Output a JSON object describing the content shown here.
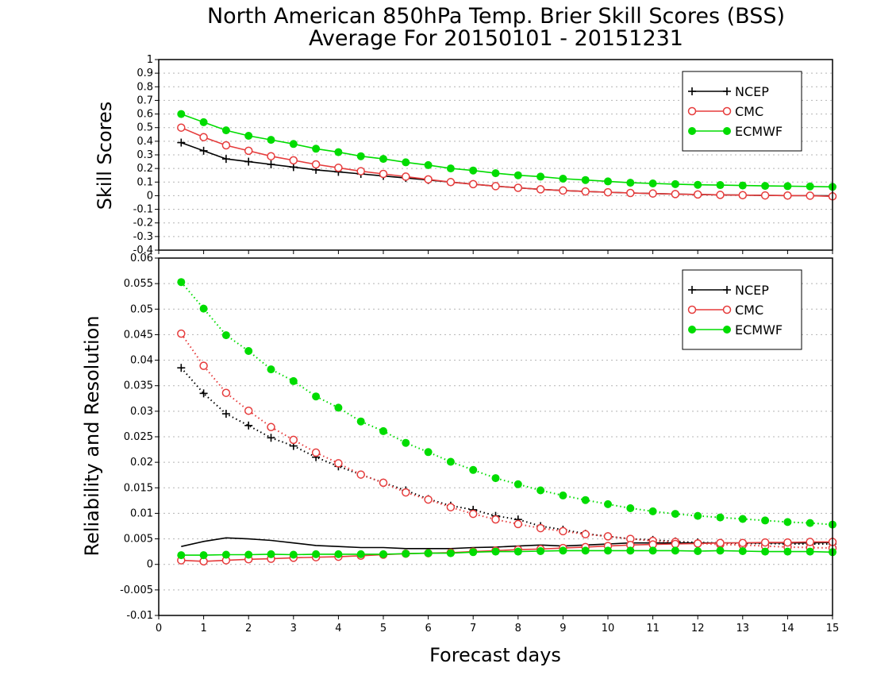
{
  "header": {
    "title_line1": "North American 850hPa Temp. Brier Skill Scores (BSS)",
    "title_line2": "Average For 20150101 - 20151231"
  },
  "colors": {
    "NCEP": "#000000",
    "CMC": "#e63c3c",
    "ECMWF": "#00dc00",
    "grid": "#b4b4b4"
  },
  "chart_data": [
    {
      "type": "line",
      "ylabel": "Skill Scores",
      "xlabel": "",
      "xlim": [
        0,
        15
      ],
      "ylim": [
        -0.4,
        1.0
      ],
      "y_ticks": [
        "-0.4",
        "-0.3",
        "-0.2",
        "-0.1",
        "0",
        "0.1",
        "0.2",
        "0.3",
        "0.4",
        "0.5",
        "0.6",
        "0.7",
        "0.8",
        "0.9",
        "1"
      ],
      "grid": true,
      "legend_position": "top-right",
      "legend": [
        "NCEP",
        "CMC",
        "ECMWF"
      ],
      "x": [
        0.5,
        1,
        1.5,
        2,
        2.5,
        3,
        3.5,
        4,
        4.5,
        5,
        5.5,
        6,
        6.5,
        7,
        7.5,
        8,
        8.5,
        9,
        9.5,
        10,
        10.5,
        11,
        11.5,
        12,
        12.5,
        13,
        13.5,
        14,
        14.5,
        15
      ],
      "series": [
        {
          "name": "NCEP",
          "marker": "plus",
          "line": "solid",
          "values": [
            0.39,
            0.33,
            0.27,
            0.25,
            0.23,
            0.21,
            0.19,
            0.175,
            0.16,
            0.145,
            0.13,
            0.115,
            0.1,
            0.085,
            0.07,
            0.058,
            0.047,
            0.038,
            0.031,
            0.025,
            0.02,
            0.016,
            0.012,
            0.009,
            0.006,
            0.004,
            0.002,
            0.001,
            0.0,
            -0.001
          ]
        },
        {
          "name": "CMC",
          "marker": "open-circle",
          "line": "solid",
          "values": [
            0.5,
            0.43,
            0.37,
            0.33,
            0.29,
            0.26,
            0.23,
            0.205,
            0.18,
            0.16,
            0.14,
            0.12,
            0.1,
            0.085,
            0.07,
            0.058,
            0.047,
            0.038,
            0.031,
            0.025,
            0.02,
            0.016,
            0.012,
            0.009,
            0.006,
            0.004,
            0.002,
            0.001,
            0.0,
            -0.005
          ]
        },
        {
          "name": "ECMWF",
          "marker": "filled-circle",
          "line": "solid",
          "values": [
            0.6,
            0.54,
            0.48,
            0.44,
            0.41,
            0.38,
            0.345,
            0.32,
            0.29,
            0.27,
            0.245,
            0.225,
            0.2,
            0.185,
            0.165,
            0.15,
            0.14,
            0.125,
            0.115,
            0.105,
            0.095,
            0.09,
            0.085,
            0.08,
            0.078,
            0.075,
            0.072,
            0.07,
            0.068,
            0.065
          ]
        }
      ]
    },
    {
      "type": "line",
      "ylabel": "Reliability and Resolution",
      "xlabel": "Forecast days",
      "xlim": [
        0,
        15
      ],
      "ylim": [
        -0.01,
        0.06
      ],
      "x_ticks": [
        "0",
        "1",
        "2",
        "3",
        "4",
        "5",
        "6",
        "7",
        "8",
        "9",
        "10",
        "11",
        "12",
        "13",
        "14",
        "15"
      ],
      "y_ticks": [
        "-0.01",
        "-0.005",
        "0",
        "0.005",
        "0.01",
        "0.015",
        "0.02",
        "0.025",
        "0.03",
        "0.035",
        "0.04",
        "0.045",
        "0.05",
        "0.055",
        "0.06"
      ],
      "grid": true,
      "legend_position": "top-right",
      "legend": [
        "NCEP",
        "CMC",
        "ECMWF"
      ],
      "x": [
        0.5,
        1,
        1.5,
        2,
        2.5,
        3,
        3.5,
        4,
        4.5,
        5,
        5.5,
        6,
        6.5,
        7,
        7.5,
        8,
        8.5,
        9,
        9.5,
        10,
        10.5,
        11,
        11.5,
        12,
        12.5,
        13,
        13.5,
        14,
        14.5,
        15
      ],
      "series": [
        {
          "name": "NCEP",
          "group": "resolution",
          "marker": "plus",
          "line": "dotted",
          "values": [
            0.0385,
            0.0335,
            0.0295,
            0.0272,
            0.0248,
            0.0232,
            0.021,
            0.0192,
            0.0176,
            0.016,
            0.0145,
            0.0128,
            0.0115,
            0.0107,
            0.0095,
            0.0088,
            0.0075,
            0.0068,
            0.006,
            0.0055,
            0.005,
            0.0048,
            0.0045,
            0.0043,
            0.0042,
            0.0041,
            0.0041,
            0.004,
            0.004,
            0.004
          ]
        },
        {
          "name": "CMC",
          "group": "resolution",
          "marker": "open-circle",
          "line": "dotted",
          "values": [
            0.0452,
            0.0389,
            0.0336,
            0.0301,
            0.0269,
            0.0244,
            0.0219,
            0.0198,
            0.0176,
            0.016,
            0.0141,
            0.0127,
            0.0112,
            0.0099,
            0.0088,
            0.0079,
            0.0071,
            0.0065,
            0.0059,
            0.0055,
            0.005,
            0.0046,
            0.0044,
            0.0041,
            0.0039,
            0.0038,
            0.0036,
            0.0034,
            0.0033,
            0.0032
          ]
        },
        {
          "name": "ECMWF",
          "group": "resolution",
          "marker": "filled-circle",
          "line": "dotted",
          "values": [
            0.0553,
            0.0501,
            0.0449,
            0.0418,
            0.0382,
            0.0359,
            0.0329,
            0.0307,
            0.028,
            0.0261,
            0.0238,
            0.022,
            0.0201,
            0.0185,
            0.0169,
            0.0157,
            0.0145,
            0.0135,
            0.0126,
            0.0118,
            0.011,
            0.0104,
            0.0099,
            0.0095,
            0.0092,
            0.0089,
            0.0086,
            0.0083,
            0.0081,
            0.0078
          ]
        },
        {
          "name": "NCEP",
          "group": "reliability",
          "marker": "none",
          "line": "solid",
          "values": [
            0.0035,
            0.0045,
            0.0052,
            0.005,
            0.0047,
            0.0042,
            0.0037,
            0.0035,
            0.0033,
            0.0033,
            0.0031,
            0.0031,
            0.0031,
            0.0033,
            0.0034,
            0.0036,
            0.0038,
            0.0036,
            0.0038,
            0.004,
            0.0042,
            0.0042,
            0.0042,
            0.0042,
            0.0042,
            0.0042,
            0.0042,
            0.0042,
            0.0042,
            0.0043
          ]
        },
        {
          "name": "CMC",
          "group": "reliability",
          "marker": "open-circle",
          "line": "solid",
          "values": [
            0.0008,
            0.0006,
            0.0008,
            0.001,
            0.0011,
            0.0013,
            0.0014,
            0.0015,
            0.0017,
            0.0019,
            0.0021,
            0.0022,
            0.0023,
            0.0025,
            0.0027,
            0.0029,
            0.003,
            0.0032,
            0.0034,
            0.0036,
            0.0038,
            0.0039,
            0.004,
            0.0041,
            0.0042,
            0.0042,
            0.0043,
            0.0043,
            0.0044,
            0.0044
          ]
        },
        {
          "name": "ECMWF",
          "group": "reliability",
          "marker": "filled-circle",
          "line": "solid",
          "values": [
            0.0018,
            0.0018,
            0.0019,
            0.0019,
            0.002,
            0.0019,
            0.002,
            0.002,
            0.002,
            0.002,
            0.0021,
            0.0022,
            0.0022,
            0.0024,
            0.0025,
            0.0025,
            0.0026,
            0.0027,
            0.0027,
            0.0027,
            0.0027,
            0.0027,
            0.0027,
            0.0026,
            0.0027,
            0.0026,
            0.0025,
            0.0025,
            0.0025,
            0.0024
          ]
        }
      ]
    }
  ]
}
